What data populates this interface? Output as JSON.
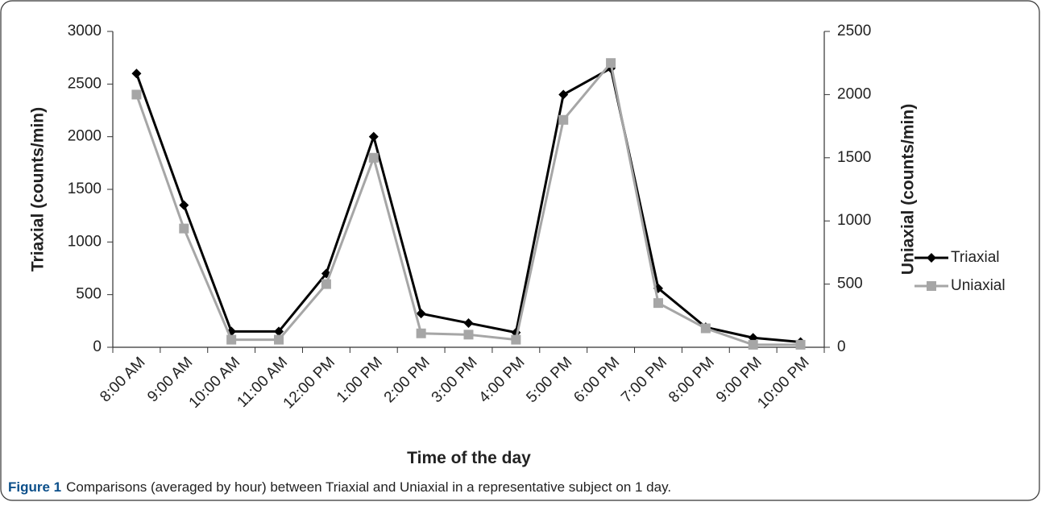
{
  "chart_data": {
    "type": "line",
    "categories": [
      "8:00 AM",
      "9:00 AM",
      "10:00 AM",
      "11:00 AM",
      "12:00 PM",
      "1:00 PM",
      "2:00 PM",
      "3:00 PM",
      "4:00 PM",
      "5:00 PM",
      "6:00 PM",
      "7:00 PM",
      "8:00 PM",
      "9:00 PM",
      "10:00 PM"
    ],
    "series": [
      {
        "name": "Triaxial",
        "color": "#000000",
        "marker": "diamond",
        "values": [
          2600,
          1350,
          150,
          150,
          700,
          2000,
          320,
          230,
          140,
          2400,
          2650,
          560,
          190,
          90,
          50
        ]
      },
      {
        "name": "Uniaxial",
        "color": "#a6a6a6",
        "marker": "square",
        "axis": "y2",
        "values": [
          2000,
          940,
          60,
          60,
          500,
          1500,
          110,
          100,
          60,
          1800,
          2250,
          350,
          150,
          20,
          20
        ]
      }
    ],
    "xlabel": "Time of the day",
    "ylabel": "Triaxial (counts/min)",
    "y2label": "Uniaxial (counts/min)",
    "ylim": [
      0,
      3000
    ],
    "yticks": [
      0,
      500,
      1000,
      1500,
      2000,
      2500,
      3000
    ],
    "y2lim": [
      0,
      2500
    ],
    "y2ticks": [
      0,
      500,
      1000,
      1500,
      2000,
      2500
    ],
    "legend": "right",
    "caption_label": "Figure 1",
    "caption": "Comparisons (averaged by hour) between Triaxial and Uniaxial in a representative subject on 1 day."
  }
}
